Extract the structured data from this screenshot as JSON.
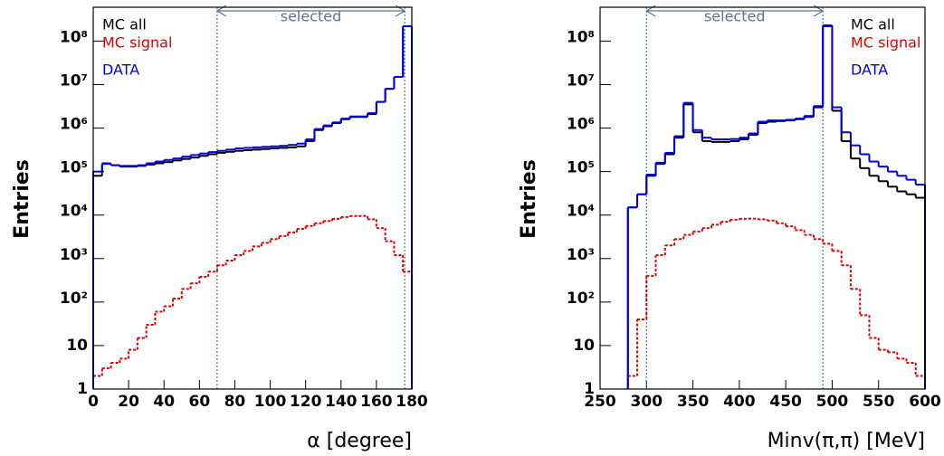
{
  "chart_data": [
    {
      "type": "histogram",
      "x_label": "α [degree]",
      "y_label": "Entries",
      "log_y": true,
      "legend": "upper left",
      "xlim": [
        0,
        180
      ],
      "xticks": [
        0,
        20,
        40,
        60,
        80,
        100,
        120,
        140,
        160,
        180
      ],
      "ylim": [
        1,
        600000000
      ],
      "yticks": [
        1,
        10,
        {
          "value": 100,
          "label": "10²"
        },
        {
          "value": 1000,
          "label": "10³"
        },
        {
          "value": 10000,
          "label": "10⁴"
        },
        {
          "value": 100000,
          "label": "10⁵"
        },
        {
          "value": 1000000,
          "label": "10⁶"
        },
        {
          "value": 10000000,
          "label": "10⁷"
        },
        {
          "value": 100000000,
          "label": "10⁸"
        }
      ],
      "selection": [
        70,
        176
      ],
      "selection_label": "selected",
      "bins": [
        0,
        5,
        10,
        15,
        20,
        25,
        30,
        35,
        40,
        45,
        50,
        55,
        60,
        65,
        70,
        75,
        80,
        85,
        90,
        95,
        100,
        105,
        110,
        115,
        120,
        125,
        130,
        135,
        140,
        145,
        150,
        155,
        160,
        165,
        170,
        175,
        180
      ],
      "series": [
        {
          "name": "MC all",
          "color": "#000000",
          "style": "solid",
          "values": [
            80000,
            150000,
            140000,
            130000,
            130000,
            135000,
            145000,
            155000,
            165000,
            180000,
            195000,
            210000,
            230000,
            250000,
            270000,
            285000,
            300000,
            310000,
            320000,
            330000,
            340000,
            350000,
            360000,
            380000,
            500000,
            900000,
            1100000,
            1300000,
            1600000,
            1800000,
            1800000,
            2100000,
            4000000,
            8000000,
            15000000,
            220000000
          ]
        },
        {
          "name": "MC signal",
          "color": "#e00000",
          "style": "dotted",
          "values": [
            2,
            3,
            4,
            5,
            8,
            15,
            30,
            60,
            80,
            120,
            200,
            270,
            380,
            500,
            700,
            900,
            1200,
            1500,
            1900,
            2300,
            2800,
            3300,
            4000,
            4800,
            5600,
            6500,
            7300,
            8200,
            9000,
            9500,
            9500,
            8000,
            5000,
            2500,
            1200,
            500
          ]
        },
        {
          "name": "DATA",
          "color": "#0000dd",
          "style": "solid",
          "values": [
            100000,
            155000,
            140000,
            135000,
            135000,
            140000,
            155000,
            170000,
            185000,
            200000,
            220000,
            240000,
            260000,
            280000,
            300000,
            320000,
            340000,
            350000,
            360000,
            370000,
            380000,
            390000,
            410000,
            440000,
            550000,
            950000,
            1150000,
            1350000,
            1650000,
            1850000,
            1850000,
            2200000,
            4000000,
            8000000,
            15000000,
            220000000
          ]
        }
      ]
    },
    {
      "type": "histogram",
      "x_label": "Minv(π,π) [MeV]",
      "y_label": "Entries",
      "log_y": true,
      "legend": "upper right",
      "xlim": [
        250,
        600
      ],
      "xticks": [
        250,
        300,
        350,
        400,
        450,
        500,
        550,
        600
      ],
      "ylim": [
        1,
        600000000
      ],
      "yticks": [
        1,
        10,
        {
          "value": 100,
          "label": "10²"
        },
        {
          "value": 1000,
          "label": "10³"
        },
        {
          "value": 10000,
          "label": "10⁴"
        },
        {
          "value": 100000,
          "label": "10⁵"
        },
        {
          "value": 1000000,
          "label": "10⁶"
        },
        {
          "value": 10000000,
          "label": "10⁷"
        },
        {
          "value": 100000000,
          "label": "10⁸"
        }
      ],
      "selection": [
        300,
        490
      ],
      "selection_label": "selected",
      "bins": [
        280,
        290,
        300,
        310,
        320,
        330,
        340,
        350,
        360,
        370,
        380,
        390,
        400,
        410,
        420,
        430,
        440,
        450,
        460,
        470,
        480,
        490,
        500,
        510,
        520,
        530,
        540,
        550,
        560,
        570,
        580,
        590,
        600
      ],
      "series": [
        {
          "name": "MC all",
          "color": "#000000",
          "style": "solid",
          "values": [
            15000,
            30000,
            80000,
            150000,
            250000,
            600000,
            3500000,
            800000,
            500000,
            480000,
            480000,
            500000,
            550000,
            700000,
            1300000,
            1400000,
            1450000,
            1500000,
            1600000,
            1800000,
            3000000,
            220000000,
            2500000,
            500000,
            200000,
            120000,
            80000,
            60000,
            45000,
            35000,
            30000,
            25000
          ]
        },
        {
          "name": "MC signal",
          "color": "#e00000",
          "style": "dotted",
          "values": [
            2,
            40,
            400,
            1200,
            2000,
            2800,
            3500,
            4200,
            5000,
            6000,
            7000,
            7800,
            8200,
            8300,
            8000,
            7500,
            6500,
            5500,
            4500,
            3500,
            2800,
            2200,
            1500,
            700,
            200,
            50,
            15,
            8,
            7,
            5,
            4,
            2
          ]
        },
        {
          "name": "DATA",
          "color": "#0000dd",
          "style": "solid",
          "values": [
            15000,
            30000,
            85000,
            160000,
            270000,
            650000,
            3800000,
            900000,
            600000,
            550000,
            550000,
            560000,
            600000,
            750000,
            1400000,
            1500000,
            1500000,
            1550000,
            1650000,
            1900000,
            3200000,
            230000000,
            3000000,
            800000,
            400000,
            250000,
            170000,
            130000,
            100000,
            80000,
            65000,
            50000
          ]
        }
      ]
    }
  ]
}
